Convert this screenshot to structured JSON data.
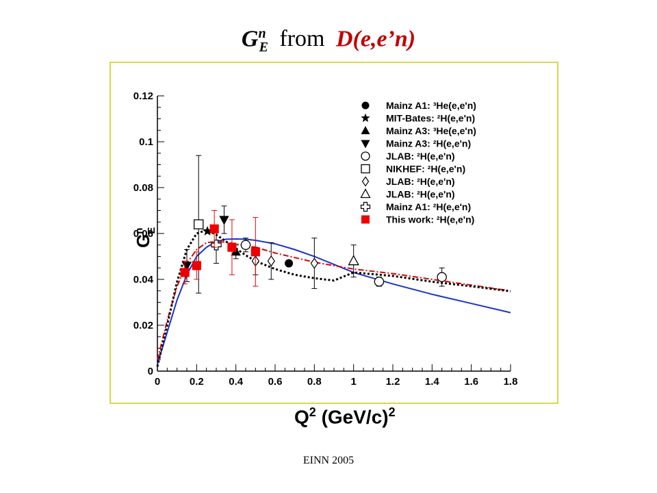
{
  "slide": {
    "title_symbol": "G",
    "title_sup": "n",
    "title_sub": "E",
    "title_mid": "from",
    "title_reaction": "D(e,e’n)",
    "footer": "EINN 2005"
  },
  "chart_data": {
    "type": "scatter",
    "xlabel": "Q",
    "xlabel_sup": "2",
    "xlabel_units": "(GeV/c)",
    "xlabel_units_sup": "2",
    "ylabel": "G",
    "ylabel_sup": "n",
    "ylabel_sub": "E",
    "xlim": [
      0,
      1.8
    ],
    "ylim": [
      0,
      0.12
    ],
    "x_ticks": [
      "0",
      "0.2",
      "0.4",
      "0.6",
      "0.8",
      "1",
      "1.2",
      "1.4",
      "1.6",
      "1.8"
    ],
    "y_ticks": [
      "0",
      "0.02",
      "0.04",
      "0.06",
      "0.08",
      "0.1",
      "0.12"
    ],
    "legend_position": "top-right",
    "series": [
      {
        "name": "Mainz A1: ³He(e,e'n)",
        "marker": "filled-circle",
        "color": "#000000",
        "points": [
          {
            "x": 0.67,
            "y": 0.047,
            "err": 0.0
          }
        ]
      },
      {
        "name": "MIT-Bates: ²H(e,e'n)",
        "marker": "star",
        "color": "#000000",
        "points": [
          {
            "x": 0.255,
            "y": 0.061,
            "err": 0.0
          }
        ]
      },
      {
        "name": "Mainz A3: ³He(e,e'n)",
        "marker": "filled-triangle-up",
        "color": "#000000",
        "points": [
          {
            "x": 0.4,
            "y": 0.052,
            "err": 0.003
          }
        ]
      },
      {
        "name": "Mainz A3: ²H(e,e'n)",
        "marker": "filled-triangle-down",
        "color": "#000000",
        "points": [
          {
            "x": 0.15,
            "y": 0.046,
            "err": 0.007
          },
          {
            "x": 0.34,
            "y": 0.066,
            "err": 0.006
          }
        ]
      },
      {
        "name": "JLAB: ²H(e,e'n)",
        "marker": "open-circle",
        "color": "#000000",
        "points": [
          {
            "x": 0.45,
            "y": 0.055,
            "err": 0.003
          },
          {
            "x": 1.13,
            "y": 0.039,
            "err": 0.002
          },
          {
            "x": 1.45,
            "y": 0.041,
            "err": 0.004
          }
        ]
      },
      {
        "name": "NIKHEF: ²H(e,e'n)",
        "marker": "open-square",
        "color": "#000000",
        "points": [
          {
            "x": 0.21,
            "y": 0.064,
            "err": 0.03
          }
        ]
      },
      {
        "name": "JLAB: ²H(e,e'n)",
        "marker": "open-diamond",
        "color": "#000000",
        "points": [
          {
            "x": 0.5,
            "y": 0.048,
            "err": 0.006
          },
          {
            "x": 0.58,
            "y": 0.048,
            "err": 0.008
          },
          {
            "x": 0.8,
            "y": 0.047,
            "err": 0.011
          }
        ]
      },
      {
        "name": "JLAB: ²H(e,e'n)",
        "marker": "open-triangle-up",
        "color": "#000000",
        "points": [
          {
            "x": 1.0,
            "y": 0.048,
            "err": 0.007
          }
        ]
      },
      {
        "name": "Mainz A1: ²H(e,e'n)",
        "marker": "open-cross",
        "color": "#000000",
        "points": [
          {
            "x": 0.3,
            "y": 0.055,
            "err": 0.008
          }
        ]
      },
      {
        "name": "This work: ²H(e,e'n)",
        "marker": "filled-square",
        "color": "#ee0000",
        "points": [
          {
            "x": 0.14,
            "y": 0.043,
            "err": 0.005
          },
          {
            "x": 0.2,
            "y": 0.046,
            "err": 0.006
          },
          {
            "x": 0.29,
            "y": 0.062,
            "err": 0.008
          },
          {
            "x": 0.38,
            "y": 0.054,
            "err": 0.012
          },
          {
            "x": 0.5,
            "y": 0.052,
            "err": 0.015
          }
        ]
      }
    ],
    "curves": [
      {
        "style": "solid",
        "color": "#1a33cc",
        "x": [
          0.0,
          0.05,
          0.1,
          0.15,
          0.2,
          0.25,
          0.3,
          0.35,
          0.4,
          0.45,
          0.5,
          0.6,
          0.7,
          0.8,
          0.9,
          1.0,
          1.2,
          1.4,
          1.6,
          1.8
        ],
        "y": [
          0.003,
          0.017,
          0.031,
          0.042,
          0.05,
          0.054,
          0.0565,
          0.0575,
          0.0576,
          0.0575,
          0.057,
          0.0555,
          0.053,
          0.05,
          0.0465,
          0.043,
          0.038,
          0.0335,
          0.0295,
          0.0255
        ]
      },
      {
        "style": "dash-dot",
        "color": "#dd0000",
        "x": [
          0.0,
          0.05,
          0.1,
          0.15,
          0.2,
          0.25,
          0.3,
          0.35,
          0.4,
          0.45,
          0.5,
          0.6,
          0.7,
          0.8,
          0.9,
          1.0,
          1.2,
          1.4,
          1.6,
          1.8
        ],
        "y": [
          0.005,
          0.022,
          0.037,
          0.047,
          0.053,
          0.056,
          0.0565,
          0.0562,
          0.0555,
          0.0545,
          0.054,
          0.0515,
          0.0495,
          0.0475,
          0.046,
          0.0445,
          0.0425,
          0.04,
          0.0375,
          0.035
        ]
      },
      {
        "style": "dashed",
        "color": "#000000",
        "x": [
          0.0,
          0.05,
          0.1,
          0.15,
          0.2,
          0.25,
          0.3,
          0.35,
          0.4,
          0.45,
          0.5,
          0.6,
          0.7,
          0.8,
          0.9,
          1.0,
          1.2,
          1.4,
          1.6,
          1.8
        ],
        "y": [
          0.002,
          0.02,
          0.039,
          0.053,
          0.06,
          0.0615,
          0.0595,
          0.0565,
          0.0535,
          0.0505,
          0.048,
          0.0445,
          0.042,
          0.0405,
          0.0395,
          0.043,
          0.0415,
          0.039,
          0.037,
          0.0348
        ]
      }
    ]
  }
}
